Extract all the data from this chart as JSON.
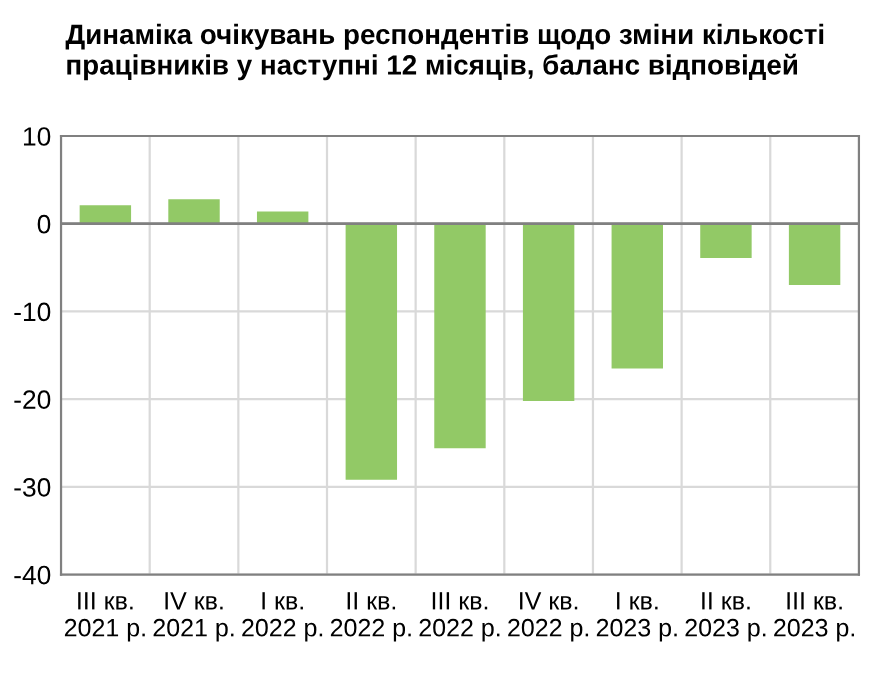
{
  "chart_data": {
    "type": "bar",
    "title": "Динаміка очікувань респондентів щодо зміни кількості працівників у наступні 12 місяців, баланс відповідей",
    "categories": [
      "III кв.\n2021 р.",
      "IV кв.\n2021 р.",
      "I кв.\n2022 р.",
      "II кв.\n2022 р.",
      "III кв.\n2022 р.",
      "IV кв.\n2022 р.",
      "I кв.\n2023 р.",
      "II кв.\n2023 р.",
      "III кв.\n2023 р."
    ],
    "values": [
      2.1,
      2.8,
      1.4,
      -29.2,
      -25.6,
      -20.2,
      -16.5,
      -3.9,
      -7.0
    ],
    "color": "#92c966",
    "ylim": [
      -40,
      10
    ],
    "yticks": [
      10,
      0,
      {
        "value": -10,
        "label": "-10"
      },
      {
        "value": -20,
        "label": "-20"
      },
      {
        "value": -30,
        "label": "-30"
      },
      {
        "value": -40,
        "label": "-40"
      }
    ],
    "grid": true
  }
}
